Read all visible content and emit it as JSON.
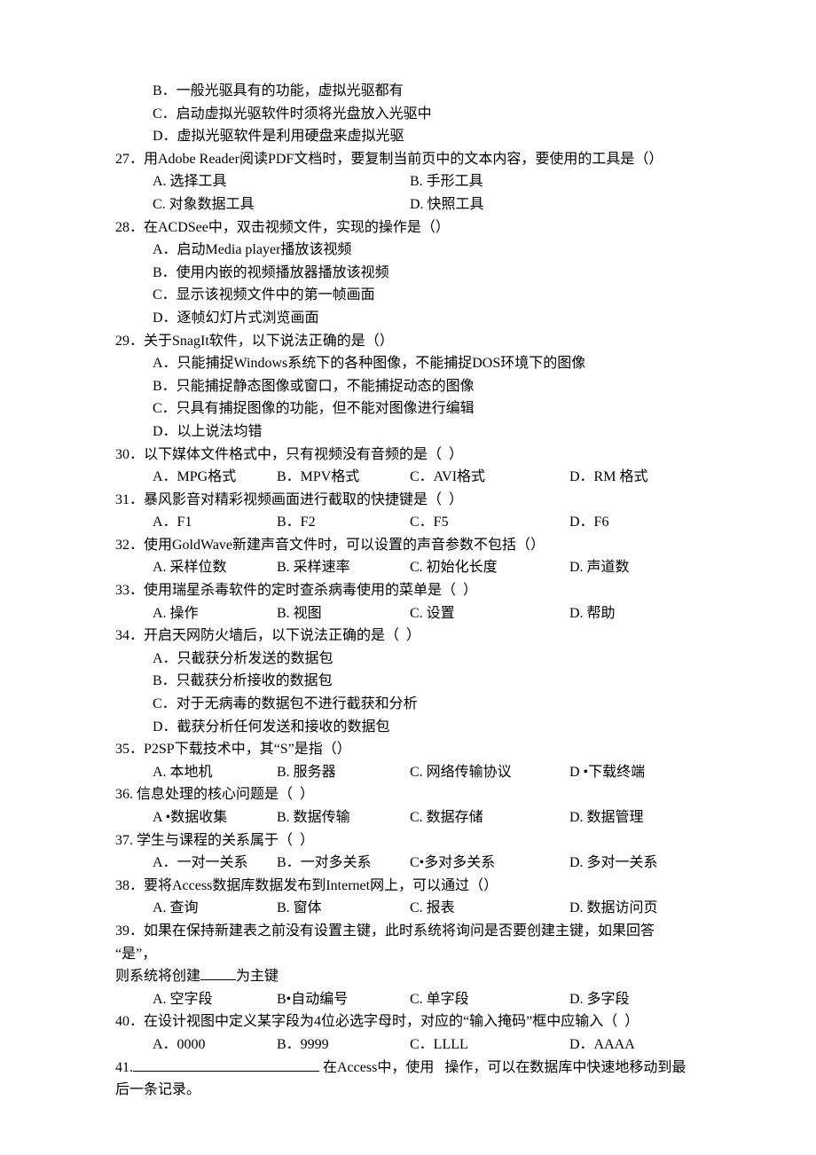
{
  "lines": [
    {
      "type": "opt-single",
      "text": "B．一般光驱具有的功能，虚拟光驱都有"
    },
    {
      "type": "opt-single",
      "text": "C．启动虚拟光驱软件时须将光盘放入光驱中"
    },
    {
      "type": "opt-single",
      "text": "D．虚拟光驱软件是利用硬盘来虚拟光驱"
    },
    {
      "type": "q",
      "text": "27．用Adobe Reader阅读PDF文档时，要复制当前页中的文本内容，要使用的工具是（）"
    },
    {
      "type": "two",
      "a": "A. 选择工具",
      "b": "B. 手形工具"
    },
    {
      "type": "two",
      "a": "C. 对象数据工具",
      "b": "D. 快照工具"
    },
    {
      "type": "q",
      "text": "28．在ACDSee中，双击视频文件，实现的操作是（）"
    },
    {
      "type": "opt-single",
      "text": "A．启动Media player播放该视频"
    },
    {
      "type": "opt-single",
      "text": "B．使用内嵌的视频播放器播放该视频"
    },
    {
      "type": "opt-single",
      "text": "C．显示该视频文件中的第一帧画面"
    },
    {
      "type": "opt-single",
      "text": "D．逐帧幻灯片式浏览画面"
    },
    {
      "type": "q",
      "text": "29．关于SnagIt软件，以下说法正确的是（）"
    },
    {
      "type": "opt-single",
      "text": "A．只能捕捉Windows系统下的各种图像，不能捕捉DOS环境下的图像"
    },
    {
      "type": "opt-single",
      "text": "B．只能捕捉静态图像或窗口，不能捕捉动态的图像"
    },
    {
      "type": "opt-single",
      "text": "C．只具有捕捉图像的功能，但不能对图像进行编辑"
    },
    {
      "type": "opt-single",
      "text": "D．以上说法均错"
    },
    {
      "type": "q",
      "text": "30．以下媒体文件格式中，只有视频没有音频的是（  ）"
    },
    {
      "type": "four",
      "a": "A．MPG格式",
      "b": "B．MPV格式",
      "c": "C．AVI格式",
      "d": "D．RM 格式"
    },
    {
      "type": "q",
      "text": "31．暴风影音对精彩视频画面进行截取的快捷键是（  ）"
    },
    {
      "type": "four",
      "a": "A．F1",
      "b": "B．F2",
      "c": "C．F5",
      "d": "D．F6"
    },
    {
      "type": "q",
      "text": "32．使用GoldWave新建声音文件时，可以设置的声音参数不包括（）"
    },
    {
      "type": "four",
      "a": "A. 采样位数",
      "b": "B. 采样速率",
      "c": "C. 初始化长度",
      "d": "D. 声道数"
    },
    {
      "type": "q",
      "text": "33．使用瑞星杀毒软件的定时查杀病毒使用的菜单是（  ）"
    },
    {
      "type": "four",
      "a": "A. 操作",
      "b": "B. 视图",
      "c": "C. 设置",
      "d": "D. 帮助"
    },
    {
      "type": "q",
      "text": "34．开启天网防火墙后，以下说法正确的是（  ）"
    },
    {
      "type": "opt-single",
      "text": "A．只截获分析发送的数据包"
    },
    {
      "type": "opt-single",
      "text": "B．只截获分析接收的数据包"
    },
    {
      "type": "opt-single",
      "text": "C．对于无病毒的数据包不进行截获和分析"
    },
    {
      "type": "opt-single",
      "text": "D．截获分析任何发送和接收的数据包"
    },
    {
      "type": "q",
      "text": "35．P2SP下载技术中，其“S”是指（）"
    },
    {
      "type": "four",
      "a": "A. 本地机",
      "b": "B. 服务器",
      "c": "C. 网络传输协议",
      "d": "D •下载终端"
    },
    {
      "type": "q",
      "text": "36. 信息处理的核心问题是（  ）"
    },
    {
      "type": "four",
      "a": "A •数据收集",
      "b": "B. 数据传输",
      "c": "C. 数据存储",
      "d": "D. 数据管理"
    },
    {
      "type": "q",
      "text": "37. 学生与课程的关系属于（  ）"
    },
    {
      "type": "four",
      "a": "A．一对一关系",
      "b": "B．一对多关系",
      "c": "C•多对多关系",
      "d": "D. 多对一关系"
    },
    {
      "type": "q",
      "text": "38．要将Access数据库数据发布到Internet网上，可以通过（）"
    },
    {
      "type": "four",
      "a": "A. 查询",
      "b": "B. 窗体",
      "c": "C. 报表",
      "d": "D. 数据访问页"
    },
    {
      "type": "q",
      "text": "39．如果在保持新建表之前没有设置主键，此时系统将询问是否要创建主键，如果回答"
    },
    {
      "type": "q-noindent",
      "text": "“是”，"
    },
    {
      "type": "blank-line",
      "before": "则系统将创建",
      "after": "为主键"
    },
    {
      "type": "four",
      "a": "A. 空字段",
      "b": "B•自动编号",
      "c": "C. 单字段",
      "d": "D. 多字段"
    },
    {
      "type": "q",
      "text": "40．在设计视图中定义某字段为4位必选字母时，对应的“输入掩码”框中应输入（  ）"
    },
    {
      "type": "four",
      "a": "A．0000",
      "b": "B．9999",
      "c": "C．LLLL",
      "d": "D．AAAA"
    },
    {
      "type": "blank-line-41",
      "before": "41.",
      "mid": " 在Access中，使用   操作，可以在数据库中快速地移动到最"
    },
    {
      "type": "q-noindent",
      "text": "后一条记录。"
    }
  ]
}
